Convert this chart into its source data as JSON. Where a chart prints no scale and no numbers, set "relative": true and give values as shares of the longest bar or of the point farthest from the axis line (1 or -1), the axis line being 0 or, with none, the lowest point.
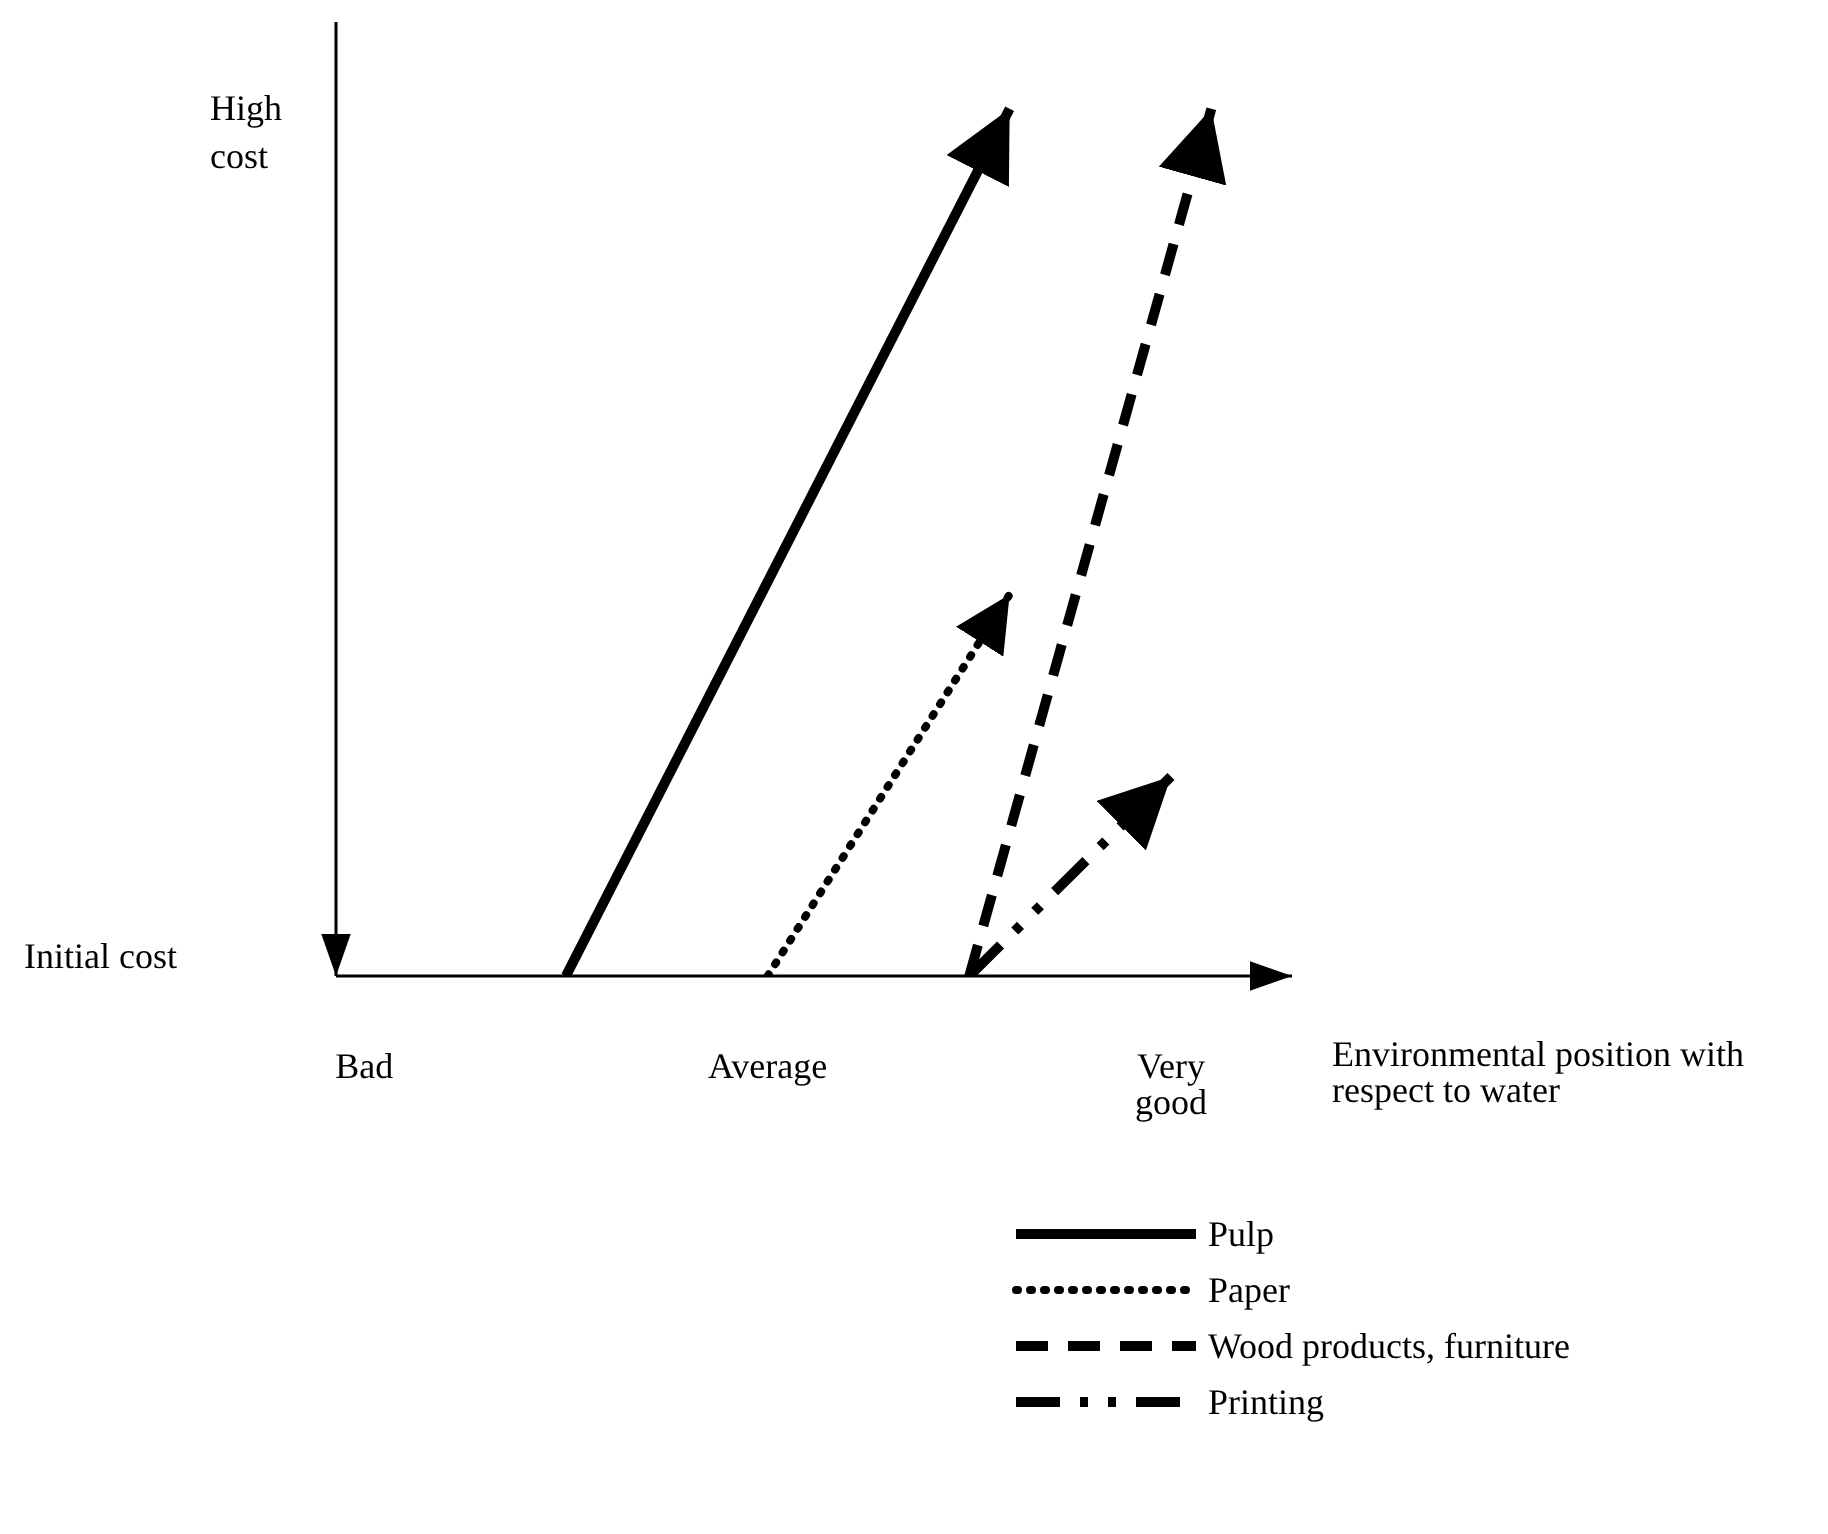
{
  "chart_data": {
    "type": "line",
    "relative": true,
    "xlabel": "Environmental position with respect to water",
    "categories": [
      "Bad",
      null,
      null,
      null,
      null,
      null,
      null,
      null,
      null,
      null,
      "Average",
      null,
      null,
      null,
      null,
      null,
      null,
      null,
      null,
      null,
      "Very good",
      null,
      null,
      null
    ],
    "annotations": [
      "High cost",
      "Initial cost"
    ],
    "grid": false,
    "legend": "bottom",
    "marker": "none",
    "series": [
      {
        "name": "Pulp",
        "color": "#000000",
        "line_style": "solid",
        "values": [
          null,
          null,
          null,
          null,
          null,
          0,
          null,
          null,
          null,
          null,
          null,
          null,
          null,
          null,
          null,
          null,
          1,
          null,
          null,
          null,
          null,
          null,
          null,
          null
        ]
      },
      {
        "name": "Paper",
        "color": "#000000",
        "line_style": "dotted",
        "values": [
          null,
          null,
          null,
          null,
          null,
          null,
          null,
          null,
          null,
          null,
          0,
          null,
          null,
          null,
          null,
          null,
          0.44,
          null,
          null,
          null,
          null,
          null,
          null,
          null
        ]
      },
      {
        "name": "Wood products, furniture",
        "color": "#000000",
        "line_style": "dashed",
        "values": [
          null,
          null,
          null,
          null,
          null,
          null,
          null,
          null,
          null,
          null,
          null,
          null,
          null,
          null,
          null,
          0,
          null,
          null,
          null,
          null,
          null,
          1,
          null,
          null
        ]
      },
      {
        "name": "Printing",
        "color": "#000000",
        "line_style": "dashdot",
        "values": [
          null,
          null,
          null,
          null,
          null,
          null,
          null,
          null,
          null,
          null,
          null,
          null,
          null,
          null,
          null,
          0,
          null,
          null,
          null,
          null,
          0.23,
          null,
          null,
          null
        ]
      }
    ]
  }
}
